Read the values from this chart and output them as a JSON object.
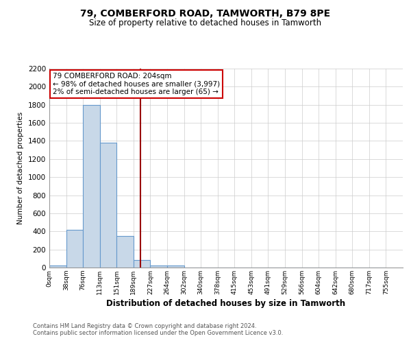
{
  "title": "79, COMBERFORD ROAD, TAMWORTH, B79 8PE",
  "subtitle": "Size of property relative to detached houses in Tamworth",
  "xlabel": "Distribution of detached houses by size in Tamworth",
  "ylabel": "Number of detached properties",
  "bar_color": "#c8d8e8",
  "bar_edge_color": "#6699cc",
  "bin_labels": [
    "0sqm",
    "38sqm",
    "76sqm",
    "113sqm",
    "151sqm",
    "189sqm",
    "227sqm",
    "264sqm",
    "302sqm",
    "340sqm",
    "378sqm",
    "415sqm",
    "453sqm",
    "491sqm",
    "529sqm",
    "566sqm",
    "604sqm",
    "642sqm",
    "680sqm",
    "717sqm",
    "755sqm"
  ],
  "bar_heights": [
    20,
    420,
    1800,
    1380,
    350,
    80,
    25,
    20,
    0,
    0,
    0,
    0,
    0,
    0,
    0,
    0,
    0,
    0,
    0,
    0
  ],
  "property_line_x": 5.43,
  "property_line_color": "#990000",
  "annotation_line1": "79 COMBERFORD ROAD: 204sqm",
  "annotation_line2": "← 98% of detached houses are smaller (3,997)",
  "annotation_line3": "2% of semi-detached houses are larger (65) →",
  "annotation_box_color": "#cc0000",
  "ylim": [
    0,
    2200
  ],
  "yticks": [
    0,
    200,
    400,
    600,
    800,
    1000,
    1200,
    1400,
    1600,
    1800,
    2000,
    2200
  ],
  "footnote1": "Contains HM Land Registry data © Crown copyright and database right 2024.",
  "footnote2": "Contains public sector information licensed under the Open Government Licence v3.0.",
  "background_color": "#ffffff",
  "grid_color": "#cccccc"
}
